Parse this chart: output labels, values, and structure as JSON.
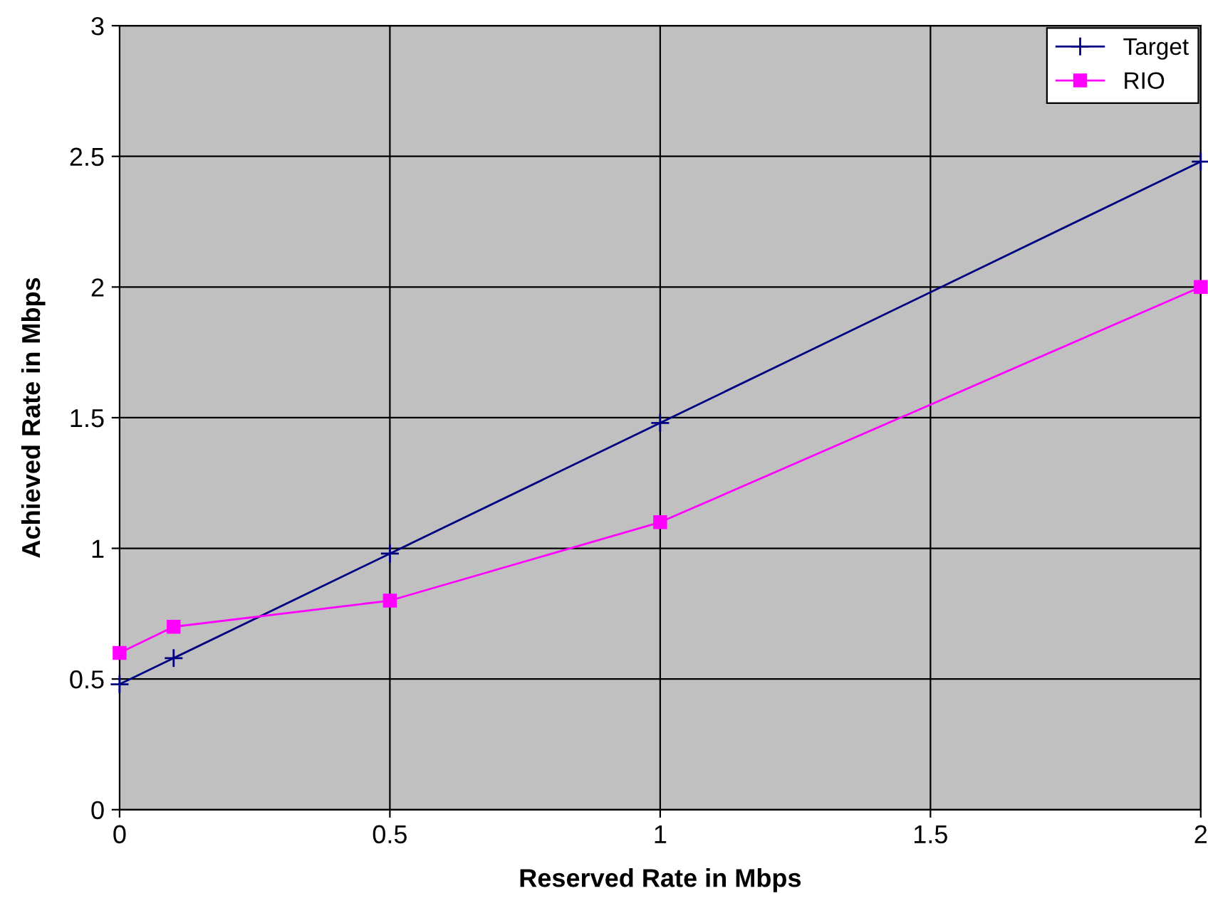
{
  "chart_data": {
    "type": "line",
    "xlabel": "Reserved Rate in Mbps",
    "ylabel": "Achieved Rate in Mbps",
    "series": [
      {
        "name": "Target",
        "color": "#000080",
        "marker": "cross",
        "x": [
          0,
          0.1,
          0.5,
          1,
          2
        ],
        "values": [
          0.48,
          0.58,
          0.98,
          1.48,
          2.48
        ]
      },
      {
        "name": "RIO",
        "color": "#ff00ff",
        "marker": "square",
        "x": [
          0,
          0.1,
          0.5,
          1,
          2
        ],
        "values": [
          0.6,
          0.7,
          0.8,
          1.1,
          2.0
        ]
      }
    ],
    "xlim": [
      0,
      2
    ],
    "xticks": [
      0,
      0.5,
      1,
      1.5,
      2
    ],
    "ylim": [
      0,
      3
    ],
    "yticks": [
      0,
      0.5,
      1,
      1.5,
      2,
      2.5,
      3
    ],
    "grid": true,
    "legend": "top right",
    "line_style": "solid"
  }
}
